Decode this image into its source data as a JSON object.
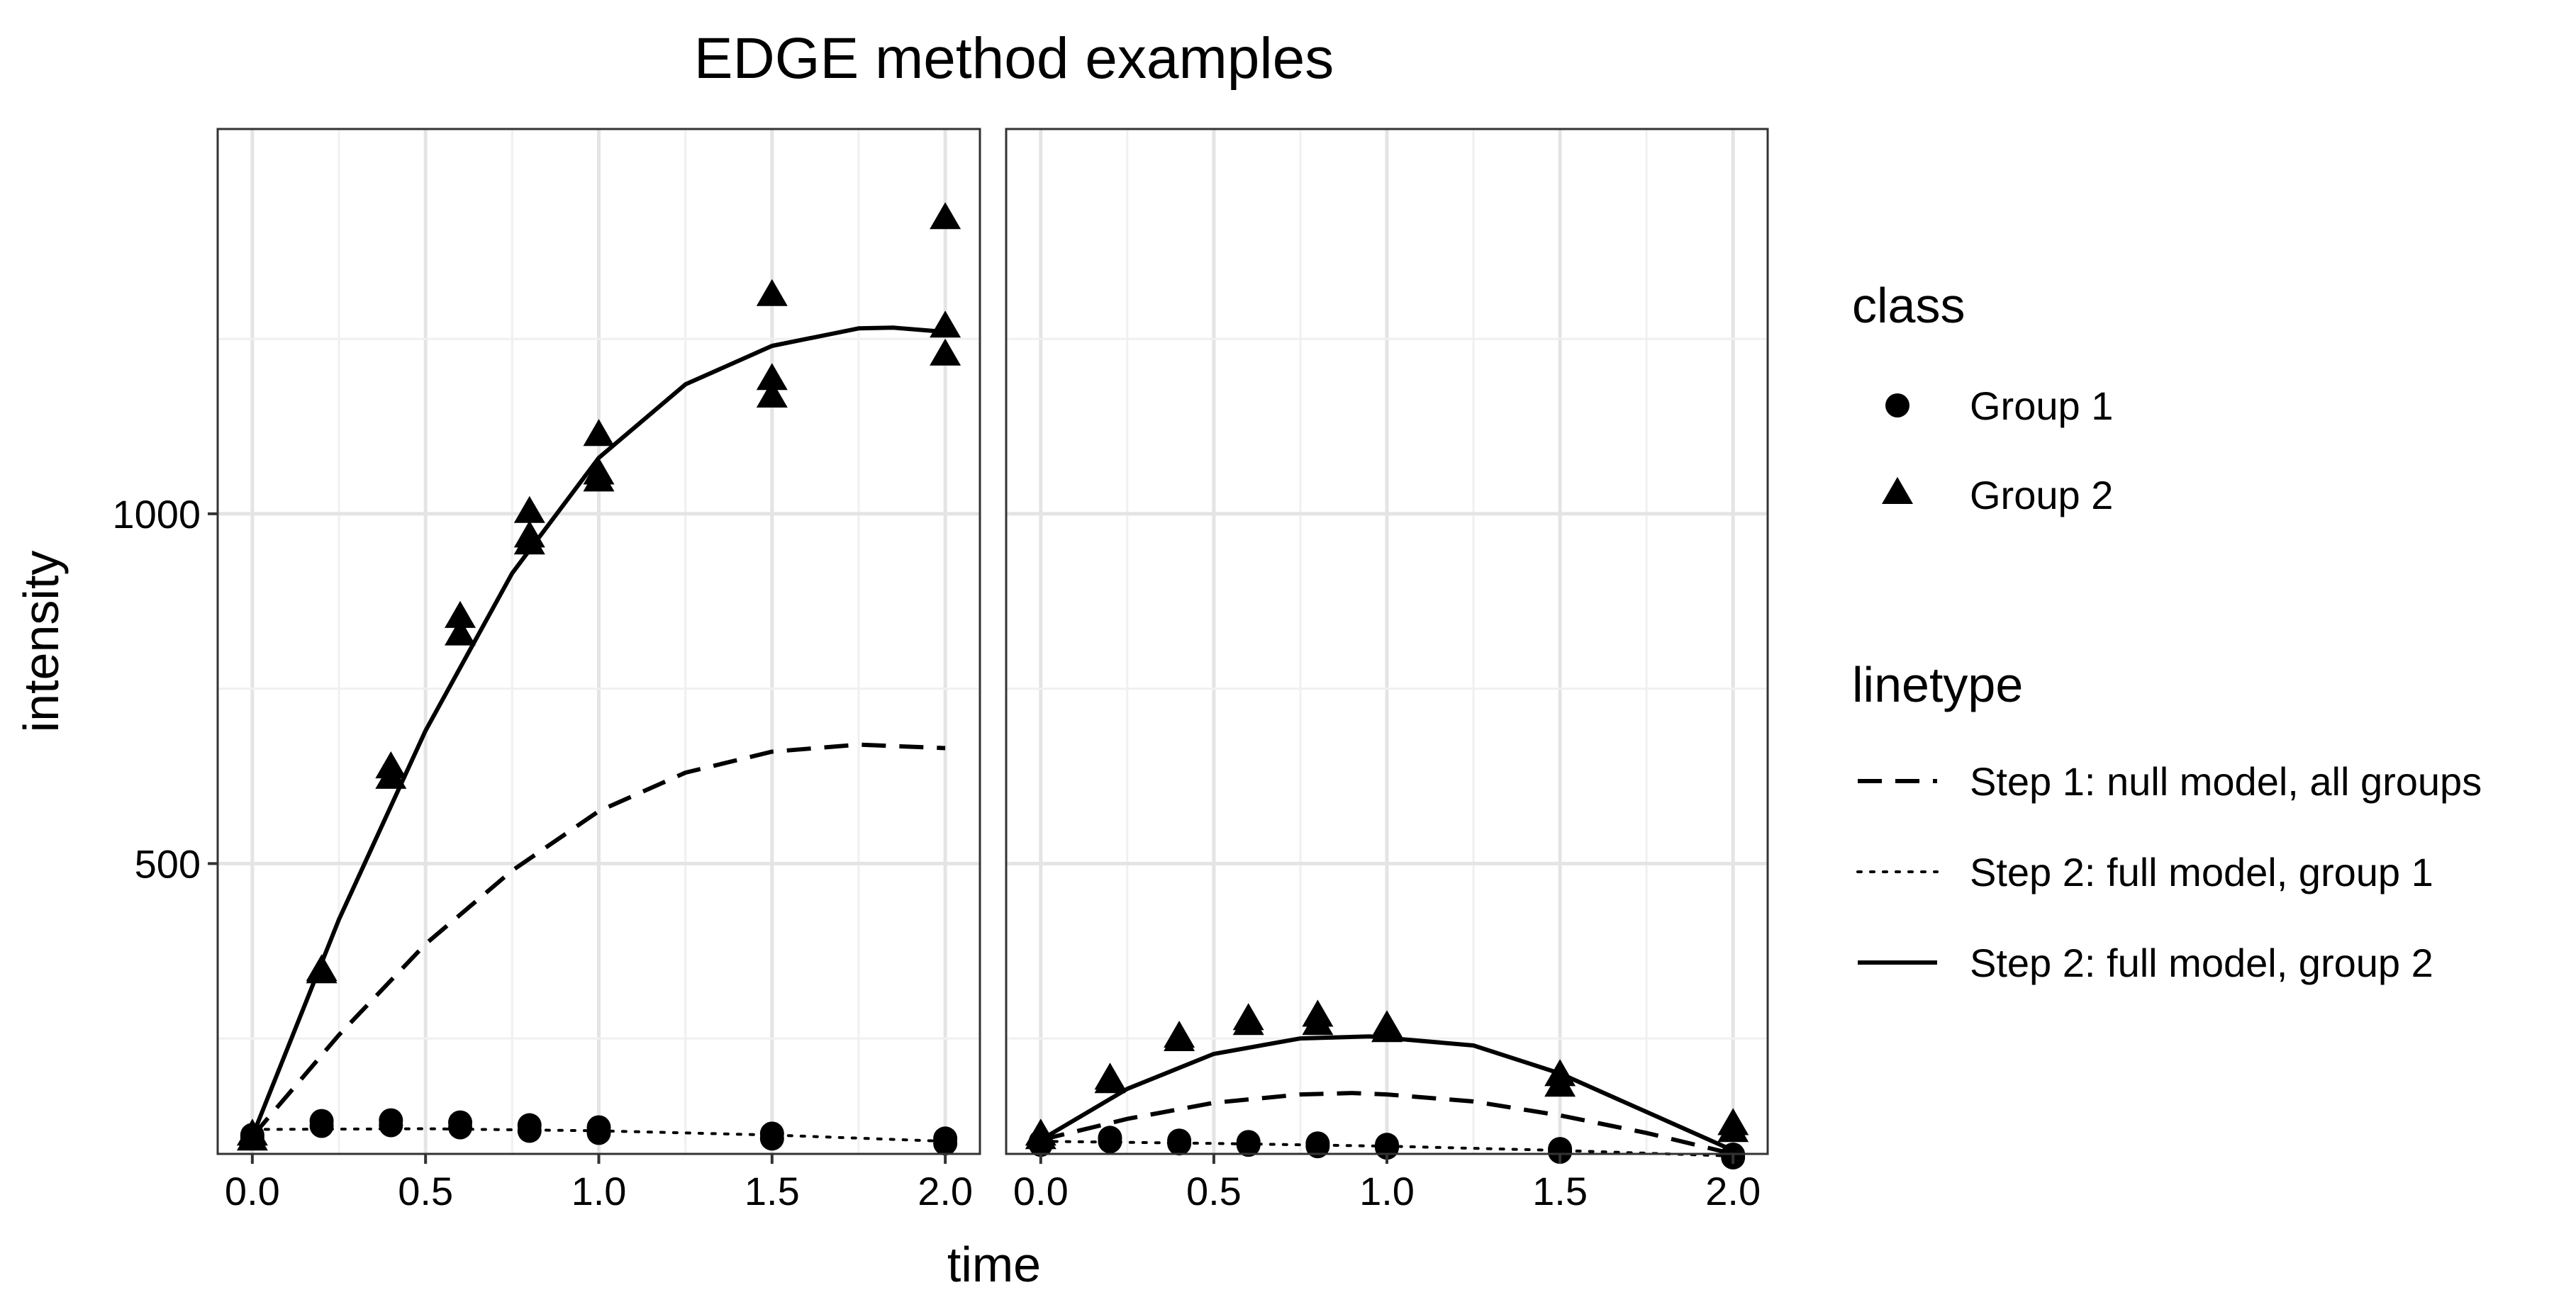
{
  "chart_data": {
    "type": "scatter",
    "title": "EDGE method examples",
    "xlabel": "time",
    "ylabel": "intensity",
    "xlim": [
      -0.1,
      2.1
    ],
    "ylim": [
      85,
      1550
    ],
    "x_ticks": [
      "0.0",
      "0.5",
      "1.0",
      "1.5",
      "2.0"
    ],
    "x_tick_values": [
      0,
      0.5,
      1,
      1.5,
      2
    ],
    "y_ticks": [
      "500",
      "1000"
    ],
    "y_tick_values": [
      500,
      1000
    ],
    "grid": true,
    "legend_position": "right",
    "legend": {
      "class_title": "class",
      "class_items": [
        {
          "label": "Group 1",
          "shape": "circle"
        },
        {
          "label": "Group 2",
          "shape": "triangle"
        }
      ],
      "linetype_title": "linetype",
      "linetype_items": [
        {
          "label": "Step 1: null model, all groups",
          "dash": "dashed"
        },
        {
          "label": "Step 2: full model, group 1",
          "dash": "dotted"
        },
        {
          "label": "Step 2: full model, group 2",
          "dash": "solid"
        }
      ]
    },
    "panels": [
      {
        "group1_points": [
          [
            0,
            112
          ],
          [
            0,
            108
          ],
          [
            0.2,
            132
          ],
          [
            0.2,
            125
          ],
          [
            0.4,
            133
          ],
          [
            0.4,
            126
          ],
          [
            0.6,
            130
          ],
          [
            0.6,
            123
          ],
          [
            0.8,
            126
          ],
          [
            0.8,
            118
          ],
          [
            1.0,
            123
          ],
          [
            1.0,
            115
          ],
          [
            1.5,
            114
          ],
          [
            1.5,
            107
          ],
          [
            2.0,
            107
          ],
          [
            2.0,
            100
          ]
        ],
        "group2_points": [
          [
            0,
            110
          ],
          [
            0,
            103
          ],
          [
            0.2,
            345
          ],
          [
            0.2,
            342
          ],
          [
            0.4,
            635
          ],
          [
            0.4,
            620
          ],
          [
            0.6,
            850
          ],
          [
            0.6,
            825
          ],
          [
            0.8,
            1000
          ],
          [
            0.8,
            965
          ],
          [
            0.8,
            955
          ],
          [
            1.0,
            1110
          ],
          [
            1.0,
            1055
          ],
          [
            1.0,
            1045
          ],
          [
            1.5,
            1310
          ],
          [
            1.5,
            1190
          ],
          [
            1.5,
            1165
          ],
          [
            2.0,
            1420
          ],
          [
            2.0,
            1265
          ],
          [
            2.0,
            1225
          ]
        ],
        "null_model": [
          [
            0,
            110
          ],
          [
            0.25,
            255
          ],
          [
            0.5,
            385
          ],
          [
            0.75,
            490
          ],
          [
            1.0,
            575
          ],
          [
            1.25,
            630
          ],
          [
            1.5,
            660
          ],
          [
            1.75,
            670
          ],
          [
            2.0,
            665
          ]
        ],
        "full_model_group1": [
          [
            0,
            120
          ],
          [
            0.5,
            121
          ],
          [
            1.0,
            118
          ],
          [
            1.5,
            112
          ],
          [
            2.0,
            103
          ]
        ],
        "full_model_group2": [
          [
            0,
            110
          ],
          [
            0.25,
            420
          ],
          [
            0.5,
            690
          ],
          [
            0.75,
            915
          ],
          [
            1.0,
            1080
          ],
          [
            1.25,
            1185
          ],
          [
            1.5,
            1240
          ],
          [
            1.75,
            1265
          ],
          [
            1.85,
            1266
          ],
          [
            2.0,
            1260
          ]
        ]
      },
      {
        "group1_points": [
          [
            0,
            103
          ],
          [
            0,
            98
          ],
          [
            0.2,
            108
          ],
          [
            0.2,
            103
          ],
          [
            0.4,
            104
          ],
          [
            0.4,
            100
          ],
          [
            0.6,
            102
          ],
          [
            0.6,
            98
          ],
          [
            0.8,
            100
          ],
          [
            0.8,
            96
          ],
          [
            1.0,
            98
          ],
          [
            1.0,
            94
          ],
          [
            1.5,
            92
          ],
          [
            1.5,
            88
          ],
          [
            2.0,
            84
          ],
          [
            2.0,
            80
          ]
        ],
        "group2_points": [
          [
            0,
            110
          ],
          [
            0,
            105
          ],
          [
            0.2,
            190
          ],
          [
            0.2,
            185
          ],
          [
            0.4,
            250
          ],
          [
            0.4,
            245
          ],
          [
            0.6,
            275
          ],
          [
            0.6,
            268
          ],
          [
            0.8,
            280
          ],
          [
            0.8,
            268
          ],
          [
            1.0,
            265
          ],
          [
            1.0,
            258
          ],
          [
            1.5,
            195
          ],
          [
            1.5,
            180
          ],
          [
            2.0,
            125
          ],
          [
            2.0,
            115
          ]
        ],
        "null_model": [
          [
            0,
            105
          ],
          [
            0.25,
            135
          ],
          [
            0.5,
            158
          ],
          [
            0.75,
            170
          ],
          [
            0.9,
            172
          ],
          [
            1.0,
            170
          ],
          [
            1.25,
            160
          ],
          [
            1.5,
            140
          ],
          [
            1.75,
            115
          ],
          [
            2.0,
            85
          ]
        ],
        "full_model_group1": [
          [
            0,
            103
          ],
          [
            0.5,
            100
          ],
          [
            1.0,
            96
          ],
          [
            1.5,
            90
          ],
          [
            2.0,
            82
          ]
        ],
        "full_model_group2": [
          [
            0,
            105
          ],
          [
            0.25,
            178
          ],
          [
            0.5,
            228
          ],
          [
            0.75,
            250
          ],
          [
            0.95,
            253
          ],
          [
            1.25,
            240
          ],
          [
            1.5,
            200
          ],
          [
            1.75,
            145
          ],
          [
            2.0,
            90
          ]
        ]
      }
    ]
  }
}
